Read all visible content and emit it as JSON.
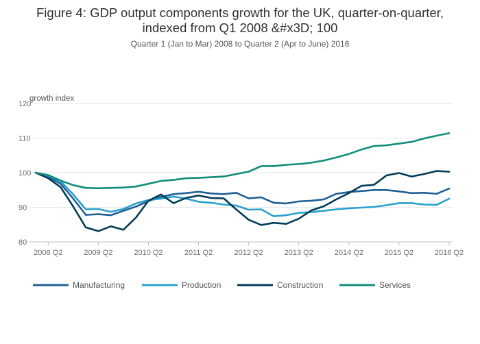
{
  "chart_data": {
    "type": "line",
    "title_line1": "Figure 4: GDP output components growth for the UK, quarter-on-quarter,",
    "title_line2": "indexed from Q1 2008 &#x3D; 100",
    "subtitle": "Quarter 1 (Jan to Mar) 2008 to Quarter 2 (Apr to June) 2016",
    "ylabel": "growth index",
    "ylim": [
      80,
      120
    ],
    "yticks": [
      80,
      90,
      100,
      110,
      120
    ],
    "x_tick_labels": [
      "2008 Q2",
      "2009 Q2",
      "2010 Q2",
      "2011 Q2",
      "2012 Q2",
      "2013 Q2",
      "2014 Q2",
      "2015 Q2",
      "2016 Q2"
    ],
    "x_tick_quarter_index": [
      1,
      5,
      9,
      13,
      17,
      21,
      25,
      29,
      33
    ],
    "x": [
      "2008 Q1",
      "2008 Q2",
      "2008 Q3",
      "2008 Q4",
      "2009 Q1",
      "2009 Q2",
      "2009 Q3",
      "2009 Q4",
      "2010 Q1",
      "2010 Q2",
      "2010 Q3",
      "2010 Q4",
      "2011 Q1",
      "2011 Q2",
      "2011 Q3",
      "2011 Q4",
      "2012 Q1",
      "2012 Q2",
      "2012 Q3",
      "2012 Q4",
      "2013 Q1",
      "2013 Q2",
      "2013 Q3",
      "2013 Q4",
      "2014 Q1",
      "2014 Q2",
      "2014 Q3",
      "2014 Q4",
      "2015 Q1",
      "2015 Q2",
      "2015 Q3",
      "2015 Q4",
      "2016 Q1",
      "2016 Q2"
    ],
    "grid": true,
    "legend_position": "bottom",
    "series": [
      {
        "name": "Manufacturing",
        "color": "#206095",
        "values": [
          100.0,
          98.8,
          96.8,
          92.5,
          87.8,
          88.0,
          87.7,
          89.0,
          90.2,
          91.8,
          93.0,
          93.8,
          94.1,
          94.5,
          94.0,
          93.8,
          94.2,
          92.6,
          92.9,
          91.3,
          91.1,
          91.7,
          91.9,
          92.3,
          93.9,
          94.4,
          94.7,
          95.0,
          95.0,
          94.6,
          94.1,
          94.2,
          93.9,
          95.4
        ]
      },
      {
        "name": "Production",
        "color": "#27A0CC",
        "values": [
          100.0,
          99.1,
          97.5,
          93.7,
          89.4,
          89.5,
          88.7,
          89.5,
          91.1,
          92.1,
          92.5,
          93.1,
          92.5,
          91.6,
          91.3,
          90.8,
          90.5,
          89.3,
          89.4,
          87.4,
          87.7,
          88.4,
          88.6,
          89.0,
          89.4,
          89.7,
          89.9,
          90.1,
          90.6,
          91.2,
          91.2,
          90.8,
          90.7,
          92.5
        ]
      },
      {
        "name": "Construction",
        "color": "#003C57",
        "values": [
          100.0,
          98.4,
          95.8,
          90.2,
          84.2,
          83.1,
          84.5,
          83.5,
          87.0,
          91.9,
          93.7,
          91.2,
          92.7,
          93.4,
          92.7,
          92.6,
          89.4,
          86.4,
          84.9,
          85.5,
          85.2,
          86.7,
          89.1,
          90.3,
          92.3,
          94.1,
          96.2,
          96.5,
          99.2,
          99.9,
          98.9,
          99.6,
          100.5,
          100.3
        ]
      },
      {
        "name": "Services",
        "color": "#118C7B",
        "values": [
          100.0,
          99.3,
          97.7,
          96.4,
          95.6,
          95.5,
          95.6,
          95.7,
          96.0,
          96.8,
          97.6,
          97.9,
          98.4,
          98.5,
          98.7,
          98.9,
          99.6,
          100.3,
          101.9,
          101.9,
          102.3,
          102.5,
          102.9,
          103.5,
          104.4,
          105.4,
          106.7,
          107.7,
          107.9,
          108.4,
          108.9,
          109.9,
          110.7,
          111.4
        ]
      }
    ]
  }
}
